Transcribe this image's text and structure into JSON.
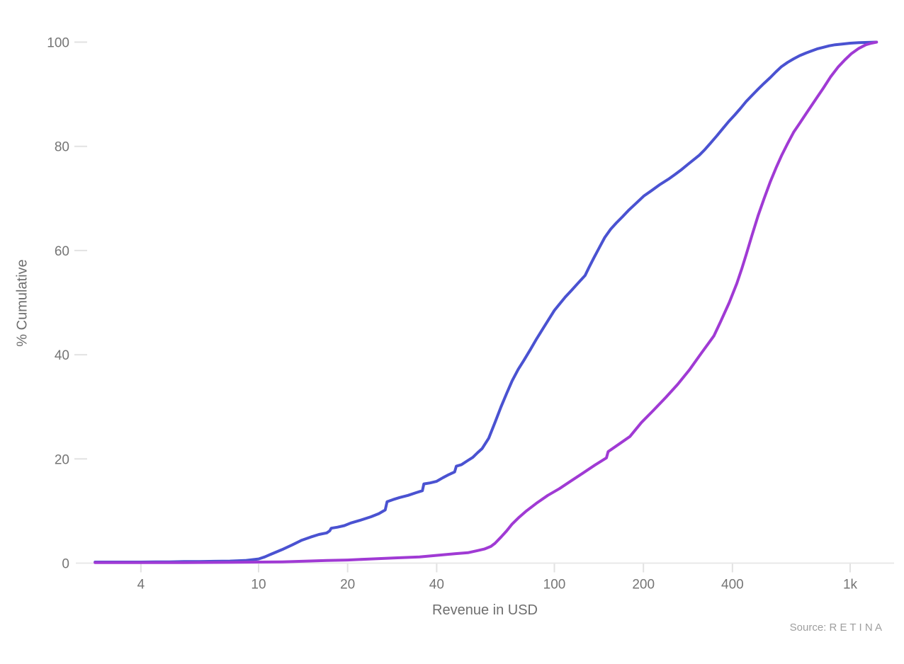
{
  "chart_data": {
    "type": "line",
    "title": "",
    "xlabel": "Revenue in USD",
    "ylabel": "% Cumulative",
    "x_scale": "log",
    "y_scale": "linear",
    "x_range": [
      2.4,
      1400
    ],
    "y_range": [
      0,
      100
    ],
    "grid": false,
    "legend": "none",
    "x_ticks": [
      {
        "value": 4,
        "label": "4"
      },
      {
        "value": 10,
        "label": "10"
      },
      {
        "value": 20,
        "label": "20"
      },
      {
        "value": 40,
        "label": "40"
      },
      {
        "value": 100,
        "label": "100"
      },
      {
        "value": 200,
        "label": "200"
      },
      {
        "value": 400,
        "label": "400"
      },
      {
        "value": 1000,
        "label": "1k"
      }
    ],
    "y_ticks": [
      {
        "value": 0,
        "label": "0"
      },
      {
        "value": 20,
        "label": "20"
      },
      {
        "value": 40,
        "label": "40"
      },
      {
        "value": 60,
        "label": "60"
      },
      {
        "value": 80,
        "label": "80"
      },
      {
        "value": 100,
        "label": "100"
      }
    ],
    "series": [
      {
        "name": "blue",
        "color": "#4a52d1",
        "points": [
          [
            2.8,
            0.2
          ],
          [
            3.2,
            0.2
          ],
          [
            3.6,
            0.2
          ],
          [
            4,
            0.2
          ],
          [
            4.5,
            0.25
          ],
          [
            5,
            0.25
          ],
          [
            5.6,
            0.3
          ],
          [
            6.3,
            0.3
          ],
          [
            7.1,
            0.35
          ],
          [
            8,
            0.4
          ],
          [
            9,
            0.5
          ],
          [
            10,
            0.8
          ],
          [
            10.5,
            1.2
          ],
          [
            11,
            1.7
          ],
          [
            12,
            2.6
          ],
          [
            13,
            3.5
          ],
          [
            14,
            4.4
          ],
          [
            15,
            5
          ],
          [
            16,
            5.5
          ],
          [
            17,
            5.8
          ],
          [
            17.4,
            6.2
          ],
          [
            17.6,
            6.7
          ],
          [
            18.5,
            6.9
          ],
          [
            19.5,
            7.2
          ],
          [
            20.5,
            7.7
          ],
          [
            22,
            8.2
          ],
          [
            24,
            8.9
          ],
          [
            25.5,
            9.5
          ],
          [
            26.8,
            10.2
          ],
          [
            27.2,
            11.8
          ],
          [
            28.5,
            12.2
          ],
          [
            30,
            12.6
          ],
          [
            32,
            13
          ],
          [
            34,
            13.5
          ],
          [
            35.8,
            13.9
          ],
          [
            36.2,
            15.2
          ],
          [
            38,
            15.4
          ],
          [
            40,
            15.7
          ],
          [
            42,
            16.4
          ],
          [
            44,
            17
          ],
          [
            46,
            17.5
          ],
          [
            46.6,
            18.6
          ],
          [
            48.5,
            18.9
          ],
          [
            51,
            19.7
          ],
          [
            53,
            20.3
          ],
          [
            55,
            21.2
          ],
          [
            57,
            22
          ],
          [
            60,
            24
          ],
          [
            63,
            27
          ],
          [
            66,
            30
          ],
          [
            69,
            32.6
          ],
          [
            72,
            35
          ],
          [
            75.5,
            37.2
          ],
          [
            79,
            39
          ],
          [
            83,
            41
          ],
          [
            87,
            43
          ],
          [
            91,
            44.8
          ],
          [
            95,
            46.5
          ],
          [
            100,
            48.5
          ],
          [
            104,
            49.7
          ],
          [
            109,
            51.1
          ],
          [
            114,
            52.3
          ],
          [
            120,
            53.7
          ],
          [
            127,
            55.2
          ],
          [
            131,
            56.8
          ],
          [
            136,
            58.6
          ],
          [
            142,
            60.6
          ],
          [
            148,
            62.5
          ],
          [
            155,
            64.1
          ],
          [
            162,
            65.3
          ],
          [
            170,
            66.5
          ],
          [
            178,
            67.7
          ],
          [
            190,
            69.2
          ],
          [
            201,
            70.5
          ],
          [
            213,
            71.5
          ],
          [
            228,
            72.7
          ],
          [
            243,
            73.7
          ],
          [
            256,
            74.6
          ],
          [
            270,
            75.6
          ],
          [
            285,
            76.7
          ],
          [
            300,
            77.7
          ],
          [
            309,
            78.3
          ],
          [
            323,
            79.4
          ],
          [
            337,
            80.6
          ],
          [
            354,
            82
          ],
          [
            371,
            83.4
          ],
          [
            389,
            84.8
          ],
          [
            407,
            86
          ],
          [
            426,
            87.3
          ],
          [
            445,
            88.6
          ],
          [
            466,
            89.8
          ],
          [
            489,
            91
          ],
          [
            512,
            92.1
          ],
          [
            537,
            93.2
          ],
          [
            561,
            94.3
          ],
          [
            586,
            95.3
          ],
          [
            614,
            96.1
          ],
          [
            644,
            96.8
          ],
          [
            675,
            97.4
          ],
          [
            708,
            97.9
          ],
          [
            740,
            98.3
          ],
          [
            773,
            98.7
          ],
          [
            810,
            99
          ],
          [
            850,
            99.3
          ],
          [
            890,
            99.5
          ],
          [
            933,
            99.6
          ],
          [
            1000,
            99.8
          ],
          [
            1070,
            99.9
          ],
          [
            1150,
            99.95
          ],
          [
            1228,
            100
          ]
        ]
      },
      {
        "name": "purple",
        "color": "#a03ad4",
        "points": [
          [
            2.8,
            0.1
          ],
          [
            4,
            0.1
          ],
          [
            5.6,
            0.1
          ],
          [
            8,
            0.15
          ],
          [
            10,
            0.2
          ],
          [
            12,
            0.25
          ],
          [
            14,
            0.35
          ],
          [
            17,
            0.5
          ],
          [
            20,
            0.6
          ],
          [
            24,
            0.8
          ],
          [
            29,
            1
          ],
          [
            35,
            1.2
          ],
          [
            42,
            1.6
          ],
          [
            46,
            1.8
          ],
          [
            51,
            2
          ],
          [
            55,
            2.4
          ],
          [
            58,
            2.7
          ],
          [
            61,
            3.2
          ],
          [
            63,
            3.8
          ],
          [
            66,
            5
          ],
          [
            69,
            6.2
          ],
          [
            72,
            7.5
          ],
          [
            76,
            8.8
          ],
          [
            80,
            9.9
          ],
          [
            87,
            11.5
          ],
          [
            95,
            13
          ],
          [
            104,
            14.3
          ],
          [
            114,
            15.8
          ],
          [
            125,
            17.3
          ],
          [
            137,
            18.8
          ],
          [
            150,
            20.2
          ],
          [
            152,
            21.4
          ],
          [
            165,
            22.8
          ],
          [
            180,
            24.3
          ],
          [
            197,
            27
          ],
          [
            216,
            29.3
          ],
          [
            238,
            31.8
          ],
          [
            261,
            34.3
          ],
          [
            287,
            37.2
          ],
          [
            313,
            40.2
          ],
          [
            330,
            42
          ],
          [
            346,
            43.6
          ],
          [
            365,
            46.4
          ],
          [
            390,
            50
          ],
          [
            414,
            53.7
          ],
          [
            430,
            56.5
          ],
          [
            445,
            59.2
          ],
          [
            466,
            63
          ],
          [
            489,
            66.8
          ],
          [
            512,
            70
          ],
          [
            537,
            73.2
          ],
          [
            561,
            75.8
          ],
          [
            586,
            78.2
          ],
          [
            614,
            80.5
          ],
          [
            644,
            82.7
          ],
          [
            675,
            84.4
          ],
          [
            708,
            86.2
          ],
          [
            740,
            87.8
          ],
          [
            773,
            89.4
          ],
          [
            810,
            91.1
          ],
          [
            860,
            93.4
          ],
          [
            910,
            95.2
          ],
          [
            960,
            96.6
          ],
          [
            1010,
            97.8
          ],
          [
            1070,
            98.8
          ],
          [
            1130,
            99.5
          ],
          [
            1180,
            99.8
          ],
          [
            1228,
            100
          ]
        ]
      }
    ]
  },
  "labels": {
    "x_axis_title": "Revenue in USD",
    "y_axis_title": "% Cumulative",
    "source_note": "Source: R E T I N A"
  },
  "colors": {
    "background": "#ffffff",
    "axis_line": "#e8e8e8",
    "tick_mark": "#e2e2e2",
    "tick_label": "#757575",
    "axis_title": "#6e6e6e",
    "source_text": "#9e9e9e",
    "series_blue": "#4a52d1",
    "series_purple": "#a03ad4"
  }
}
